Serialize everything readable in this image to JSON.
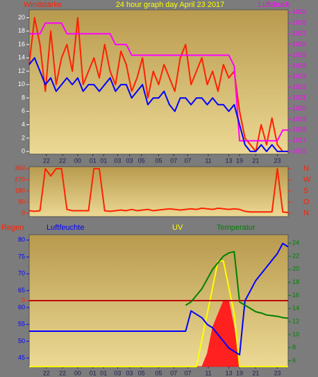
{
  "chart_data": [
    {
      "type": "line",
      "title": "24 hour graph day   April 23 2017",
      "left_label": "Windstärke",
      "right_label": "Luftdruck",
      "x": [
        0,
        0.5,
        1,
        1.5,
        2,
        2.5,
        3,
        3.5,
        4,
        4.5,
        5,
        5.5,
        6,
        6.5,
        7,
        7.5,
        8,
        8.5,
        9,
        9.5,
        10,
        10.5,
        11,
        11.5,
        12,
        12.5,
        13,
        13.5,
        14,
        14.5,
        15,
        15.5,
        16,
        16.5,
        17,
        17.5,
        18,
        18.5,
        19,
        19.5,
        20,
        20.5,
        21,
        21.5,
        22,
        22.5,
        23,
        23.5,
        24
      ],
      "xlim": [
        0,
        24
      ],
      "xticks": [
        {
          "value": 1.6,
          "label": "22"
        },
        {
          "value": 3.1,
          "label": "22"
        },
        {
          "value": 4.5,
          "label": "00"
        },
        {
          "value": 5.9,
          "label": "01"
        },
        {
          "value": 6.9,
          "label": "01"
        },
        {
          "value": 8.2,
          "label": "03"
        },
        {
          "value": 9.3,
          "label": "03"
        },
        {
          "value": 10.4,
          "label": "05"
        },
        {
          "value": 12,
          "label": "05"
        },
        {
          "value": 13.4,
          "label": "07"
        },
        {
          "value": 14.7,
          "label": "07"
        },
        {
          "value": 16.6,
          "label": "11"
        },
        {
          "value": 18.5,
          "label": "13"
        },
        {
          "value": 19.5,
          "label": "19"
        },
        {
          "value": 21,
          "label": "21"
        },
        {
          "value": 23,
          "label": "23"
        }
      ],
      "ylim": [
        -0.4,
        21.2
      ],
      "yticks": [
        0,
        2,
        4,
        6,
        8,
        10,
        12,
        14,
        16,
        18,
        20
      ],
      "ytick_color": "#ffffff",
      "y2lim": [
        1015.75,
        1029.25
      ],
      "y2ticks": [
        1016,
        1017,
        1018,
        1019,
        1020,
        1021,
        1022,
        1023,
        1024,
        1025,
        1026,
        1027,
        1028,
        1029
      ],
      "y2tick_color": "#ff00ff",
      "series": [
        {
          "color": "#ff2000",
          "axis": "y",
          "values": [
            13,
            20,
            16,
            9,
            18,
            10,
            14,
            16,
            12,
            20,
            10,
            12,
            14,
            11,
            16,
            12,
            10,
            15,
            13,
            9,
            11,
            14,
            8,
            12,
            10,
            13,
            11,
            9,
            14,
            16,
            10,
            12,
            14,
            10,
            12,
            9,
            13,
            11,
            12,
            6,
            2,
            1,
            0,
            4,
            1,
            5,
            1,
            0,
            0
          ]
        },
        {
          "color": "#ff00ff",
          "axis": "y2",
          "values": [
            1027,
            1027,
            1027,
            1028,
            1028,
            1028,
            1028,
            1027,
            1027,
            1027,
            1027,
            1027,
            1027,
            1027,
            1027,
            1027,
            1026,
            1026,
            1026,
            1025,
            1025,
            1025,
            1025,
            1025,
            1025,
            1025,
            1025,
            1025,
            1025,
            1025,
            1025,
            1025,
            1025,
            1025,
            1025,
            1025,
            1025,
            1025,
            1024,
            1017,
            1017,
            1017,
            1017,
            1017,
            1017,
            1017,
            1017,
            1018,
            1018
          ]
        },
        {
          "color": "#0000ff",
          "axis": "y",
          "values": [
            13,
            14,
            12,
            10,
            11,
            9,
            10,
            11,
            10,
            11,
            9,
            10,
            10,
            9,
            10,
            11,
            9,
            10,
            10,
            8,
            9,
            10,
            7,
            8,
            8,
            9,
            7,
            6,
            8,
            8,
            7,
            8,
            8,
            7,
            8,
            7,
            7,
            6,
            7,
            4,
            1,
            0,
            0,
            1,
            0,
            1,
            0,
            0,
            0
          ]
        }
      ]
    },
    {
      "type": "line",
      "x": [
        0,
        0.5,
        1,
        1.5,
        2,
        2.5,
        3,
        3.5,
        4,
        4.5,
        5,
        5.5,
        6,
        6.5,
        7,
        7.5,
        8,
        8.5,
        9,
        9.5,
        10,
        10.5,
        11,
        11.5,
        12,
        12.5,
        13,
        13.5,
        14,
        14.5,
        15,
        15.5,
        16,
        16.5,
        17,
        17.5,
        18,
        18.5,
        19,
        19.5,
        20,
        20.5,
        21,
        21.5,
        22,
        22.5,
        23,
        23.5,
        24
      ],
      "xlim": [
        0,
        24
      ],
      "ylim": [
        -28,
        376
      ],
      "yticks": [
        0,
        90,
        180,
        270,
        360
      ],
      "ytick_color": "#ff2000",
      "y2lim": [
        -28,
        376
      ],
      "y2ticks": [
        {
          "value": 360,
          "label": "N"
        },
        {
          "value": 270,
          "label": "W"
        },
        {
          "value": 180,
          "label": "S"
        },
        {
          "value": 90,
          "label": "O"
        },
        {
          "value": 0,
          "label": "N"
        }
      ],
      "y2tick_color": "#ff2000",
      "series": [
        {
          "color": "#ff2000",
          "axis": "y",
          "values": [
            20,
            15,
            20,
            360,
            300,
            360,
            360,
            30,
            20,
            20,
            20,
            20,
            360,
            360,
            20,
            15,
            20,
            25,
            20,
            30,
            20,
            25,
            30,
            20,
            25,
            30,
            35,
            30,
            25,
            30,
            35,
            30,
            40,
            35,
            30,
            40,
            35,
            30,
            35,
            30,
            15,
            10,
            10,
            10,
            10,
            10,
            360,
            10,
            5
          ]
        }
      ]
    },
    {
      "type": "line",
      "labels": [
        {
          "text": "Regen",
          "color": "#ff2000"
        },
        {
          "text": "Luftfeuchte",
          "color": "#0000ff"
        },
        {
          "text": "UV",
          "color": "#ffff00"
        },
        {
          "text": "Temperatur",
          "color": "#008000"
        }
      ],
      "x": [
        0,
        0.5,
        1,
        1.5,
        2,
        2.5,
        3,
        3.5,
        4,
        4.5,
        5,
        5.5,
        6,
        6.5,
        7,
        7.5,
        8,
        8.5,
        9,
        9.5,
        10,
        10.5,
        11,
        11.5,
        12,
        12.5,
        13,
        13.5,
        14,
        14.5,
        15,
        15.5,
        16,
        16.5,
        17,
        17.5,
        18,
        18.5,
        19,
        19.5,
        20,
        20.5,
        21,
        21.5,
        22,
        22.5,
        23,
        23.5,
        24
      ],
      "xlim": [
        0,
        24
      ],
      "xticks": [
        {
          "value": 1.6,
          "label": "22"
        },
        {
          "value": 3.1,
          "label": "22"
        },
        {
          "value": 4.5,
          "label": "00"
        },
        {
          "value": 5.9,
          "label": "01"
        },
        {
          "value": 6.9,
          "label": "01"
        },
        {
          "value": 8.2,
          "label": "03"
        },
        {
          "value": 9.3,
          "label": "03"
        },
        {
          "value": 10.4,
          "label": "05"
        },
        {
          "value": 12,
          "label": "05"
        },
        {
          "value": 13.4,
          "label": "07"
        },
        {
          "value": 14.7,
          "label": "07"
        },
        {
          "value": 16.6,
          "label": "11"
        },
        {
          "value": 18.5,
          "label": "13"
        },
        {
          "value": 19.5,
          "label": "19"
        },
        {
          "value": 21,
          "label": "21"
        },
        {
          "value": 23,
          "label": "23"
        }
      ],
      "ylim": [
        42.5,
        81.6
      ],
      "yticks": [
        45,
        50,
        55,
        60,
        65,
        70,
        75,
        80
      ],
      "ytick_color": "#0000ff",
      "y2lim": [
        5.1,
        25.3
      ],
      "y2ticks": [
        6,
        8,
        10,
        12,
        14,
        16,
        18,
        20,
        22,
        24
      ],
      "y2tick_color": "#008000",
      "y3lim": [
        0,
        10
      ],
      "y4lim": [
        -1,
        1
      ],
      "y4ticks": [
        0
      ],
      "y4tick_color": "#ff2000",
      "series": [
        {
          "color": "#ff2020",
          "axis": "y3",
          "fill": true,
          "values": [
            0,
            0,
            0,
            0,
            0,
            0,
            0,
            0,
            0,
            0,
            0,
            0,
            0,
            0,
            0,
            0,
            0,
            0,
            0,
            0,
            0,
            0,
            0,
            0,
            0,
            0,
            0,
            0,
            0,
            0,
            0,
            0,
            0,
            1,
            3,
            4,
            5,
            5,
            3,
            0,
            0,
            0,
            0,
            0,
            0,
            0,
            0,
            0,
            0
          ]
        },
        {
          "color": "#ffff00",
          "axis": "y3",
          "values": [
            0,
            0,
            0,
            0,
            0,
            0,
            0,
            0,
            0,
            0,
            0,
            0,
            0,
            0,
            0,
            0,
            0,
            0,
            0,
            0,
            0,
            0,
            0,
            0,
            0,
            0,
            0,
            0,
            0,
            0,
            0,
            0,
            2,
            4,
            6,
            8,
            8,
            6,
            4,
            0,
            0,
            0,
            0,
            0,
            0,
            0,
            0,
            0,
            0
          ]
        },
        {
          "color": "#c00000",
          "axis": "y4",
          "values": [
            0,
            0,
            0,
            0,
            0,
            0,
            0,
            0,
            0,
            0,
            0,
            0,
            0,
            0,
            0,
            0,
            0,
            0,
            0,
            0,
            0,
            0,
            0,
            0,
            0,
            0,
            0,
            0,
            0,
            0,
            0,
            0,
            0,
            0,
            0,
            0,
            0,
            0,
            0,
            0,
            0,
            0,
            0,
            0,
            0,
            0,
            0,
            0,
            0
          ]
        },
        {
          "color": "#0000ff",
          "axis": "y",
          "values": [
            53,
            53,
            53,
            53,
            53,
            53,
            53,
            53,
            53,
            53,
            53,
            53,
            53,
            53,
            53,
            53,
            53,
            53,
            53,
            53,
            53,
            53,
            53,
            53,
            53,
            53,
            53,
            53,
            53,
            53,
            59,
            58,
            57,
            55,
            54,
            52,
            50,
            48,
            47,
            46,
            62,
            65,
            68,
            70,
            72,
            74,
            76,
            79,
            78
          ]
        },
        {
          "color": "#008000",
          "axis": "y2",
          "values": [
            null,
            null,
            null,
            null,
            null,
            null,
            null,
            null,
            null,
            null,
            null,
            null,
            null,
            null,
            null,
            null,
            null,
            null,
            null,
            null,
            null,
            null,
            null,
            null,
            null,
            null,
            null,
            null,
            null,
            14.5,
            15,
            16,
            17,
            18.5,
            20,
            21,
            22,
            22.5,
            22.7,
            15,
            14.5,
            14,
            13.5,
            13.3,
            13,
            12.9,
            12.8,
            12.6,
            12.5
          ]
        }
      ]
    }
  ]
}
